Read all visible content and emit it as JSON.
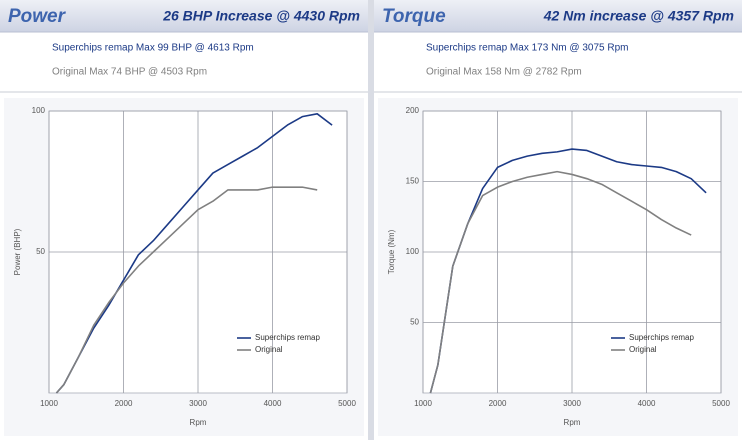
{
  "chart_data": [
    {
      "type": "line",
      "title": "Power",
      "subtitle": "26 BHP Increase @ 4430 Rpm",
      "annotations": [
        "Superchips remap Max 99 BHP @ 4613 Rpm",
        "Original Max 74 BHP @ 4503 Rpm"
      ],
      "xlabel": "Rpm",
      "ylabel": "Power (BHP)",
      "x": [
        1000,
        1100,
        1200,
        1400,
        1600,
        1800,
        2000,
        2200,
        2400,
        2600,
        2800,
        3000,
        3200,
        3400,
        3600,
        3800,
        4000,
        4200,
        4400,
        4600,
        4800
      ],
      "series": [
        {
          "name": "Superchips remap",
          "color": "#1c3a86",
          "values": [
            null,
            0,
            3,
            13,
            23,
            31,
            40,
            49,
            54,
            60,
            66,
            72,
            78,
            81,
            84,
            87,
            91,
            95,
            98,
            99,
            95
          ]
        },
        {
          "name": "Original",
          "color": "#808080",
          "values": [
            null,
            0,
            3,
            13,
            24,
            32,
            39,
            45,
            50,
            55,
            60,
            65,
            68,
            72,
            72,
            72,
            73,
            73,
            73,
            72,
            null
          ]
        }
      ],
      "xlim": [
        1000,
        5000
      ],
      "xticks": [
        1000,
        2000,
        3000,
        4000,
        5000
      ],
      "ylim": [
        0,
        100
      ],
      "yticks": [
        50,
        100
      ],
      "grid": true,
      "legend": "lower right"
    },
    {
      "type": "line",
      "title": "Torque",
      "subtitle": "42 Nm increase @ 4357 Rpm",
      "annotations": [
        "Superchips remap Max 173 Nm @ 3075 Rpm",
        "Original Max 158 Nm @ 2782 Rpm"
      ],
      "xlabel": "Rpm",
      "ylabel": "Torque (Nm)",
      "x": [
        1000,
        1100,
        1200,
        1400,
        1600,
        1800,
        2000,
        2200,
        2400,
        2600,
        2800,
        3000,
        3200,
        3400,
        3600,
        3800,
        4000,
        4200,
        4400,
        4600,
        4800
      ],
      "series": [
        {
          "name": "Superchips remap",
          "color": "#1c3a86",
          "values": [
            null,
            0,
            20,
            90,
            120,
            145,
            160,
            165,
            168,
            170,
            171,
            173,
            172,
            168,
            164,
            162,
            161,
            160,
            157,
            152,
            142
          ]
        },
        {
          "name": "Original",
          "color": "#808080",
          "values": [
            null,
            0,
            20,
            90,
            120,
            140,
            146,
            150,
            153,
            155,
            157,
            155,
            152,
            148,
            142,
            136,
            130,
            123,
            117,
            112,
            null
          ]
        }
      ],
      "xlim": [
        1000,
        5000
      ],
      "xticks": [
        1000,
        2000,
        3000,
        4000,
        5000
      ],
      "ylim": [
        0,
        200
      ],
      "yticks": [
        50,
        100,
        150,
        200
      ],
      "grid": true,
      "legend": "lower right"
    }
  ]
}
